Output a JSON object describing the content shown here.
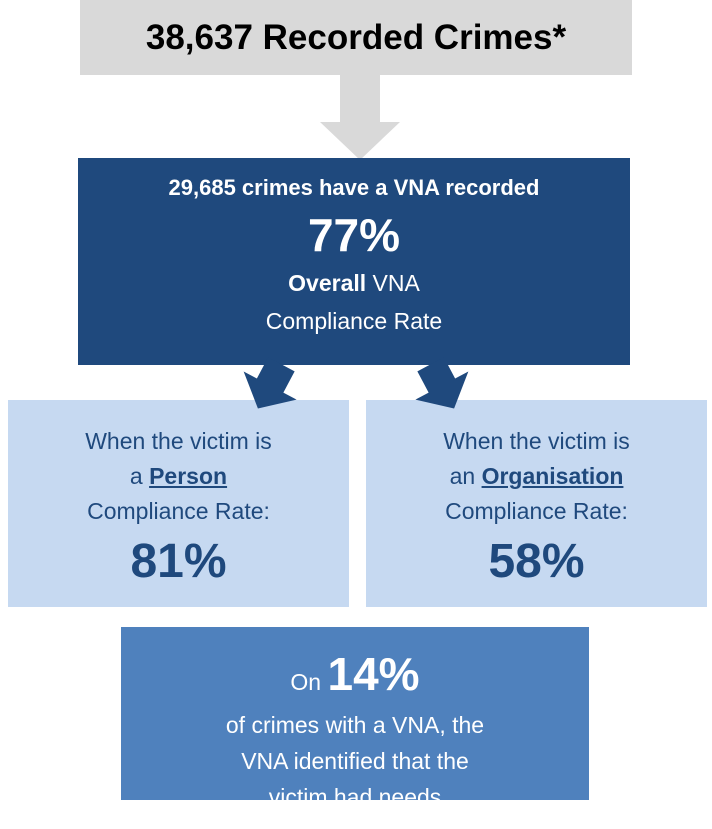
{
  "header": {
    "title": "38,637 Recorded Crimes*"
  },
  "summary": {
    "heading": "29,685 crimes have a VNA recorded",
    "rate": "77%",
    "label_bold": "Overall",
    "label_rest": "VNA",
    "label_line2": "Compliance Rate"
  },
  "boxes": [
    {
      "line1": "When the victim is",
      "prefix": "a",
      "emphasis": "Person",
      "line3": "Compliance Rate:",
      "rate": "81%"
    },
    {
      "line1": "When the victim is",
      "prefix": "an",
      "emphasis": "Organisation",
      "line3": "Compliance Rate:",
      "rate": "58%"
    }
  ],
  "footer": {
    "prefix": "On",
    "rate": "14%",
    "lines": [
      "of crimes with a VNA, the",
      "VNA identified that the",
      "victim had needs"
    ]
  }
}
